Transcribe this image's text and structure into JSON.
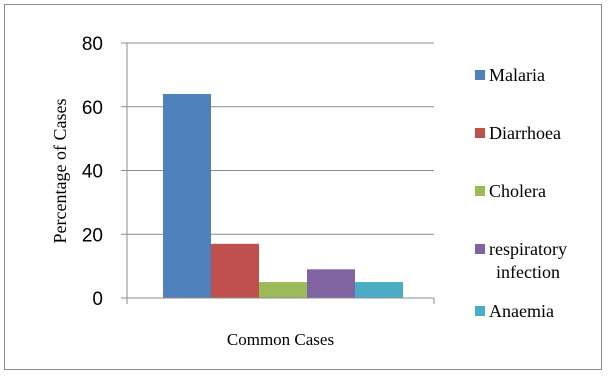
{
  "chart_data": {
    "type": "bar",
    "categories": [
      "Common Cases"
    ],
    "series": [
      {
        "name": "Malaria",
        "values": [
          64
        ],
        "color": "#4f81bd"
      },
      {
        "name": "Diarrhoea",
        "values": [
          17
        ],
        "color": "#c0504d"
      },
      {
        "name": "Cholera",
        "values": [
          5
        ],
        "color": "#9bbb59"
      },
      {
        "name": "respiratory infection",
        "values": [
          9
        ],
        "color": "#8064a2"
      },
      {
        "name": "Anaemia",
        "values": [
          5
        ],
        "color": "#4bacc6"
      }
    ],
    "title": "",
    "xlabel": "Common Cases",
    "ylabel": "Percentage of Cases",
    "ylim": [
      0,
      80
    ],
    "yticks": [
      0,
      20,
      40,
      60,
      80
    ],
    "grid": true,
    "legend": "right"
  }
}
